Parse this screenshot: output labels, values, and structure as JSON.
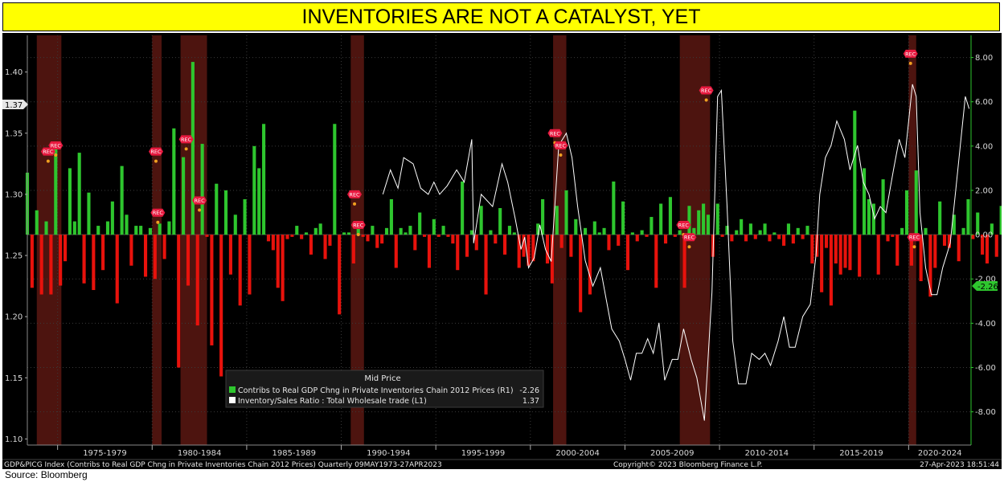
{
  "title": "INVENTORIES ARE NOT A CATALYST, YET",
  "source": "Source: Bloomberg",
  "footer": {
    "left": "GDP&PICG Index (Contribs to Real GDP Chng in Private Inventories Chain 2012 Prices)  Quarterly 09MAY1973-27APR2023",
    "center": "Copyright© 2023 Bloomberg Finance L.P.",
    "right": "27-Apr-2023  18:51:44"
  },
  "legend": {
    "header": "Mid Price",
    "items": [
      {
        "label": "Contribs to Real GDP Chng in Private Inventories Chain 2012 Prices  (R1)",
        "value": "-2.26",
        "color": "#2ec62e"
      },
      {
        "label": "Inventory/Sales Ratio : Total Wholesale trade  (L1)",
        "value": "1.37",
        "color": "#ffffff"
      }
    ]
  },
  "last_value_tags": {
    "left": "1.37",
    "right": "-2.26"
  },
  "recession_marker_label": "REC",
  "colors": {
    "positive_bar": "#2ec62e",
    "negative_bar": "#e8120c",
    "ratio_line": "#ffffff",
    "recession": "#5a1712",
    "marker": "#e8193f",
    "background": "#000000"
  },
  "chart_data": {
    "type": "bar+line",
    "x_tick_labels": [
      "1975-1979",
      "1980-1984",
      "1985-1989",
      "1990-1994",
      "1995-1999",
      "2000-2004",
      "2005-2009",
      "2010-2014",
      "2015-2019",
      "2020-2024"
    ],
    "xlim": [
      1973.4,
      2023.3
    ],
    "left_axis": {
      "ticks": [
        "1.10",
        "1.15",
        "1.20",
        "1.25",
        "1.30",
        "1.35",
        "1.40"
      ],
      "ylim": [
        1.095,
        1.43
      ]
    },
    "right_axis": {
      "ticks": [
        "-8.00",
        "-6.00",
        "-4.00",
        "-2.00",
        "0.00",
        "2.00",
        "4.00",
        "6.00",
        "8.00"
      ],
      "ylim": [
        -9.5,
        9.0
      ]
    },
    "recessions": [
      [
        1973.9,
        1975.2
      ],
      [
        1980.0,
        1980.5
      ],
      [
        1981.5,
        1982.9
      ],
      [
        1990.5,
        1991.2
      ],
      [
        2001.2,
        2001.9
      ],
      [
        2007.9,
        2009.5
      ],
      [
        2020.0,
        2020.4
      ]
    ],
    "series": [
      {
        "name": "Contribs to Real GDP Chng in Private Inventories Chain 2012 Prices",
        "axis": "right",
        "x_start": 1973.4,
        "step": 0.25,
        "values": [
          2.8,
          -2.4,
          1.1,
          -2.7,
          0.6,
          -2.7,
          3.9,
          -2.3,
          -1.2,
          3.0,
          0.6,
          3.7,
          -2.2,
          1.9,
          -2.5,
          0.4,
          -1.6,
          0.6,
          1.5,
          -3.1,
          3.1,
          0.9,
          -1.4,
          0.4,
          0.4,
          -1.9,
          0.3,
          -2.0,
          0.5,
          -1.1,
          0.6,
          4.8,
          -6.0,
          3.5,
          -2.3,
          7.8,
          -4.1,
          4.1,
          -0.1,
          -5.0,
          2.3,
          -6.4,
          2.0,
          -1.8,
          0.9,
          -3.2,
          1.6,
          -2.7,
          4.0,
          3.0,
          5.0,
          -0.3,
          -0.7,
          -2.4,
          -3.0,
          -0.2,
          -0.1,
          0.4,
          -0.2,
          0.1,
          -0.9,
          0.3,
          0.5,
          -1.1,
          -0.5,
          5.0,
          -3.6,
          0.1,
          0.1,
          -1.3,
          0.4,
          -0.1,
          -0.3,
          0.4,
          -0.6,
          -0.4,
          0.3,
          1.6,
          -1.5,
          0.3,
          0.1,
          0.4,
          -0.7,
          1.0,
          -0.1,
          -1.5,
          0.7,
          -0.1,
          0.4,
          -0.1,
          -0.4,
          -1.6,
          2.4,
          -1.0,
          0.2,
          -0.7,
          1.3,
          -2.7,
          0.2,
          -0.4,
          1.2,
          -0.9,
          0.4,
          0.1,
          -1.5,
          -1.0,
          -1.4,
          -1.2,
          0.5,
          1.6,
          -1.3,
          -2.2,
          1.3,
          -0.6,
          2.0,
          -1.0,
          0.7,
          -3.5,
          0.3,
          -2.7,
          0.6,
          0.1,
          0.3,
          -0.7,
          2.4,
          -0.5,
          1.5,
          -1.6,
          0.1,
          -0.3,
          0.2,
          -0.1,
          0.8,
          -2.4,
          1.4,
          -0.4,
          1.7,
          -0.1,
          0.2,
          -2.4,
          1.3,
          0.3,
          1.1,
          1.4,
          0.9,
          -1.0,
          1.4,
          -0.1,
          0.4,
          -0.3,
          0.2,
          0.7,
          -0.3,
          0.5,
          -0.2,
          0.2,
          0.5,
          -0.3,
          0.1,
          -0.2,
          -0.5,
          0.5,
          -0.4,
          0.3,
          -0.2,
          0.4,
          -1.3,
          -1.0,
          -2.6,
          -0.6,
          -3.2,
          -1.3,
          -1.8,
          -1.5,
          -1.6,
          5.6,
          -1.9,
          3.0,
          1.6,
          1.4,
          -1.8,
          2.5,
          -0.3,
          -0.1,
          -1.4,
          0.3,
          2.0,
          -1.4,
          2.9,
          -2.1,
          0.3,
          -2.8,
          -1.5,
          1.5,
          -0.5,
          -0.6,
          0.9,
          -1.2,
          0.3,
          1.6,
          -0.2,
          1.0,
          -0.9,
          -1.3,
          0.5,
          -1.0,
          1.3,
          0.1,
          -0.3,
          2.9,
          -0.4,
          -0.8,
          0.4,
          -0.4,
          -0.8,
          -0.8,
          -0.7,
          -0.7,
          -0.4,
          -0.9,
          -0.8,
          -1.1,
          -1.4,
          1.5,
          -0.7,
          -1.0,
          -0.7,
          -0.6,
          -0.3,
          -1.6,
          0.4,
          0.9,
          -0.1,
          -0.9,
          -0.4,
          -0.6,
          -0.5,
          -1.4,
          3.8,
          7.0,
          -5.2,
          0.3,
          0.5,
          -1.5,
          -3.1,
          -1.9,
          2.4,
          -1.7,
          6.2,
          0.1,
          -0.1,
          1.9,
          -1.4,
          -2.26
        ]
      },
      {
        "name": "Inventory/Sales Ratio : Total Wholesale trade",
        "axis": "left",
        "points": [
          [
            1992.2,
            1.3
          ],
          [
            1992.6,
            1.32
          ],
          [
            1993.0,
            1.305
          ],
          [
            1993.3,
            1.33
          ],
          [
            1993.8,
            1.325
          ],
          [
            1994.2,
            1.305
          ],
          [
            1994.6,
            1.3
          ],
          [
            1994.9,
            1.31
          ],
          [
            1995.2,
            1.3
          ],
          [
            1995.6,
            1.307
          ],
          [
            1996.1,
            1.32
          ],
          [
            1996.5,
            1.31
          ],
          [
            1996.9,
            1.345
          ],
          [
            1997.0,
            1.26
          ],
          [
            1997.4,
            1.3
          ],
          [
            1997.7,
            1.295
          ],
          [
            1998.0,
            1.29
          ],
          [
            1998.5,
            1.325
          ],
          [
            1998.8,
            1.31
          ],
          [
            1999.2,
            1.28
          ],
          [
            1999.5,
            1.255
          ],
          [
            1999.7,
            1.265
          ],
          [
            1999.9,
            1.24
          ],
          [
            2000.2,
            1.248
          ],
          [
            2000.5,
            1.275
          ],
          [
            2000.8,
            1.255
          ],
          [
            2001.1,
            1.245
          ],
          [
            2001.5,
            1.34
          ],
          [
            2001.9,
            1.35
          ],
          [
            2002.2,
            1.33
          ],
          [
            2002.5,
            1.29
          ],
          [
            2002.9,
            1.246
          ],
          [
            2003.3,
            1.225
          ],
          [
            2003.7,
            1.24
          ],
          [
            2004.0,
            1.215
          ],
          [
            2004.3,
            1.19
          ],
          [
            2004.7,
            1.18
          ],
          [
            2005.0,
            1.165
          ],
          [
            2005.3,
            1.148
          ],
          [
            2005.6,
            1.17
          ],
          [
            2005.9,
            1.17
          ],
          [
            2006.2,
            1.182
          ],
          [
            2006.5,
            1.17
          ],
          [
            2006.8,
            1.195
          ],
          [
            2007.1,
            1.148
          ],
          [
            2007.5,
            1.165
          ],
          [
            2007.8,
            1.165
          ],
          [
            2008.1,
            1.19
          ],
          [
            2008.5,
            1.165
          ],
          [
            2008.8,
            1.15
          ],
          [
            2009.2,
            1.115
          ],
          [
            2009.6,
            1.22
          ],
          [
            2009.9,
            1.38
          ],
          [
            2010.1,
            1.385
          ],
          [
            2010.4,
            1.29
          ],
          [
            2010.7,
            1.18
          ],
          [
            2011.0,
            1.145
          ],
          [
            2011.4,
            1.145
          ],
          [
            2011.7,
            1.17
          ],
          [
            2012.1,
            1.165
          ],
          [
            2012.4,
            1.17
          ],
          [
            2012.7,
            1.16
          ],
          [
            2013.1,
            1.18
          ],
          [
            2013.4,
            1.2
          ],
          [
            2013.7,
            1.175
          ],
          [
            2014.0,
            1.175
          ],
          [
            2014.4,
            1.2
          ],
          [
            2014.8,
            1.21
          ],
          [
            2015.1,
            1.25
          ],
          [
            2015.3,
            1.3
          ],
          [
            2015.6,
            1.33
          ],
          [
            2015.9,
            1.34
          ],
          [
            2016.2,
            1.36
          ],
          [
            2016.6,
            1.345
          ],
          [
            2016.9,
            1.32
          ],
          [
            2017.3,
            1.34
          ],
          [
            2017.6,
            1.31
          ],
          [
            2017.9,
            1.3
          ],
          [
            2018.2,
            1.28
          ],
          [
            2018.5,
            1.29
          ],
          [
            2018.8,
            1.285
          ],
          [
            2019.2,
            1.32
          ],
          [
            2019.5,
            1.345
          ],
          [
            2019.8,
            1.33
          ],
          [
            2020.0,
            1.36
          ],
          [
            2020.2,
            1.39
          ],
          [
            2020.4,
            1.38
          ],
          [
            2020.6,
            1.285
          ],
          [
            2020.9,
            1.24
          ],
          [
            2021.2,
            1.218
          ],
          [
            2021.5,
            1.218
          ],
          [
            2021.8,
            1.24
          ],
          [
            2022.2,
            1.26
          ],
          [
            2022.5,
            1.305
          ],
          [
            2022.8,
            1.35
          ],
          [
            2023.0,
            1.38
          ],
          [
            2023.2,
            1.37
          ]
        ]
      }
    ],
    "recession_markers": [
      {
        "x": 1974.5,
        "y": 1.335
      },
      {
        "x": 1974.9,
        "y": 1.34
      },
      {
        "x": 1980.2,
        "y": 1.335
      },
      {
        "x": 1980.3,
        "y": 1.285
      },
      {
        "x": 1981.8,
        "y": 1.345
      },
      {
        "x": 1982.5,
        "y": 1.295
      },
      {
        "x": 1990.7,
        "y": 1.3
      },
      {
        "x": 1990.9,
        "y": 1.275
      },
      {
        "x": 2001.3,
        "y": 1.35
      },
      {
        "x": 2001.6,
        "y": 1.34
      },
      {
        "x": 2008.1,
        "y": 1.275
      },
      {
        "x": 2008.4,
        "y": 1.265
      },
      {
        "x": 2009.3,
        "y": 1.385
      },
      {
        "x": 2020.1,
        "y": 1.415
      },
      {
        "x": 2020.3,
        "y": 1.265
      }
    ]
  }
}
